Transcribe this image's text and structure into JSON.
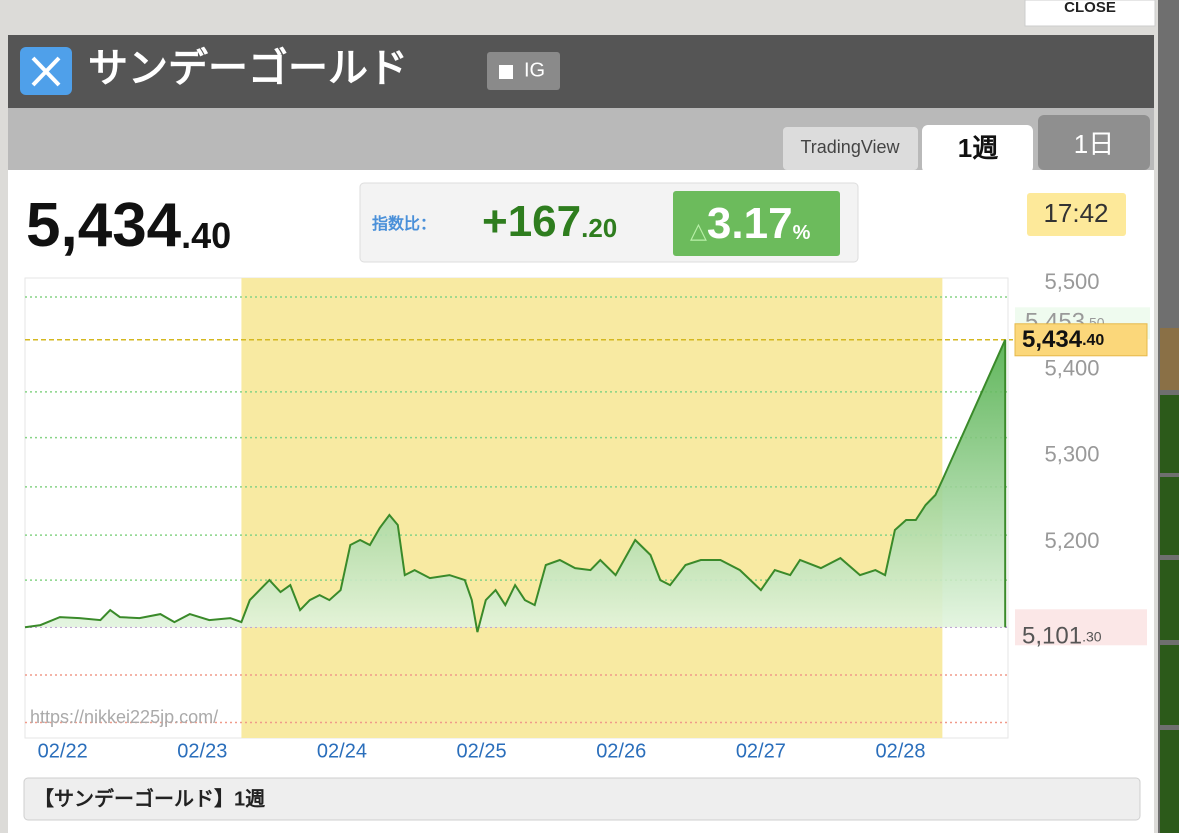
{
  "close_button": "CLOSE",
  "header": {
    "title": "サンデーゴールド",
    "ig_button": "IG"
  },
  "tabs": [
    "TradingView",
    "1週",
    "1日"
  ],
  "quote": {
    "price": "5,434",
    "price_decimal": ".40",
    "change_label": "指数比：",
    "change": "+167",
    "change_decimal": ".20",
    "change_arrow": "△",
    "change_pct": "3.17",
    "pct_unit": "%",
    "time": "17:42"
  },
  "chart_data": {
    "type": "line",
    "x": [
      -0.27,
      -0.16,
      -0.02,
      0.12,
      0.27,
      0.34,
      0.41,
      0.55,
      0.7,
      0.8,
      0.91,
      1.05,
      1.2,
      1.28,
      1.34,
      1.41,
      1.48,
      1.56,
      1.63,
      1.7,
      1.77,
      1.84,
      1.91,
      1.99,
      2.06,
      2.13,
      2.2,
      2.27,
      2.34,
      2.4,
      2.45,
      2.52,
      2.63,
      2.77,
      2.88,
      2.93,
      2.97,
      3.03,
      3.1,
      3.17,
      3.24,
      3.31,
      3.38,
      3.46,
      3.56,
      3.67,
      3.78,
      3.85,
      3.96,
      4.1,
      4.21,
      4.28,
      4.35,
      4.46,
      4.57,
      4.71,
      4.85,
      5.0,
      5.1,
      5.21,
      5.28,
      5.43,
      5.57,
      5.71,
      5.82,
      5.89,
      5.96,
      6.04,
      6.11,
      6.18,
      6.25,
      6.3,
      6.75
    ],
    "series": [
      {
        "color": "#3a8a2a",
        "values": [
          5101.3,
          5103.8,
          5113.1,
          5111.9,
          5109.6,
          5121.2,
          5113.1,
          5111.9,
          5116.6,
          5107.3,
          5116.6,
          5109.6,
          5111.9,
          5107.3,
          5132.8,
          5144.4,
          5156,
          5142.1,
          5150.2,
          5121.2,
          5132.8,
          5138.6,
          5132.8,
          5144.4,
          5196.6,
          5202.4,
          5196.6,
          5216.3,
          5231.4,
          5219.8,
          5161.8,
          5167.6,
          5158.3,
          5161.8,
          5156,
          5132.8,
          5095.7,
          5132.8,
          5144.4,
          5127,
          5150.2,
          5132.8,
          5127,
          5173.4,
          5179.2,
          5169.9,
          5167.6,
          5179.2,
          5161.8,
          5202.4,
          5185,
          5156,
          5150.2,
          5173.4,
          5179.2,
          5179.2,
          5167.6,
          5144.4,
          5167.6,
          5161.8,
          5179.2,
          5169.9,
          5181.5,
          5161.8,
          5167.6,
          5161.8,
          5214,
          5225.6,
          5225.6,
          5243,
          5254.6,
          5272,
          5434.4
        ]
      }
    ],
    "xlim": [
      -0.27,
      6.77
    ],
    "ylim": [
      4973,
      5506
    ],
    "xticks": [
      {
        "value": 0,
        "label": "02/22"
      },
      {
        "value": 1,
        "label": "02/23"
      },
      {
        "value": 2,
        "label": "02/24"
      },
      {
        "value": 3,
        "label": "02/25"
      },
      {
        "value": 4,
        "label": "02/26"
      },
      {
        "value": 5,
        "label": "02/27"
      },
      {
        "value": 6,
        "label": "02/28"
      }
    ],
    "yticks": [
      {
        "value": 5500,
        "label": "5,500"
      },
      {
        "value": 5400,
        "label": "5,400"
      },
      {
        "value": 5300,
        "label": "5,300"
      },
      {
        "value": 5200,
        "label": "5,200"
      }
    ],
    "gridlines": [
      5484,
      5374,
      5321,
      5264,
      5208,
      5156,
      5046,
      4991
    ],
    "highlight_x": [
      1.28,
      6.3
    ],
    "high_label": {
      "value": 5453.5,
      "label": "5,453.50"
    },
    "reference_lines": [
      {
        "value": 5434.4,
        "label": "5,434.40"
      },
      {
        "value": 5101.3,
        "label": "5,101.30"
      }
    ],
    "watermark": "https://nikkei225jp.com/"
  },
  "caption": "【サンデーゴールド】1週"
}
